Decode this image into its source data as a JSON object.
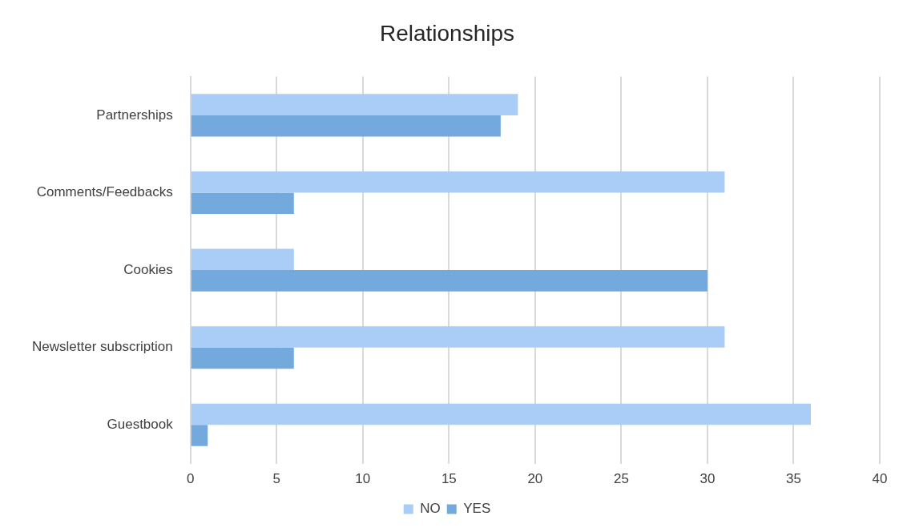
{
  "chart_data": {
    "type": "bar",
    "title": "Relationships",
    "orientation": "horizontal",
    "categories": [
      "Partnerships",
      "Comments/Feedbacks",
      "Cookies",
      "Newsletter subscription",
      "Guestbook"
    ],
    "series": [
      {
        "name": "NO",
        "color": "#a9cdf7",
        "values": [
          19,
          31,
          6,
          31,
          36
        ]
      },
      {
        "name": "YES",
        "color": "#74a9dd",
        "values": [
          18,
          6,
          30,
          6,
          1
        ]
      }
    ],
    "xlim": [
      0,
      40
    ],
    "xticks": [
      0,
      5,
      10,
      15,
      20,
      25,
      30,
      35,
      40
    ],
    "grid": "x",
    "legend": "bottom"
  }
}
